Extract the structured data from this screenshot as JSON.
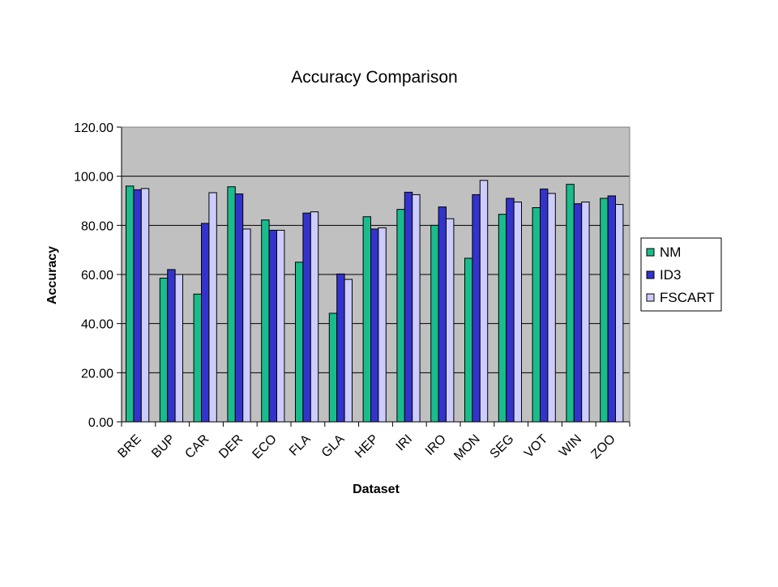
{
  "chart_data": {
    "type": "bar",
    "title": "Accuracy Comparison",
    "xlabel": "Dataset",
    "ylabel": "Accuracy",
    "ylim": [
      0,
      120
    ],
    "yticks": [
      "0.00",
      "20.00",
      "40.00",
      "60.00",
      "80.00",
      "100.00",
      "120.00"
    ],
    "ytick_values": [
      0,
      20,
      40,
      60,
      80,
      100,
      120
    ],
    "grid": true,
    "legend_position": "right",
    "categories": [
      "BRE",
      "BUP",
      "CAR",
      "DER",
      "ECO",
      "FLA",
      "GLA",
      "HEP",
      "IRI",
      "IRO",
      "MON",
      "SEG",
      "VOT",
      "WIN",
      "ZOO"
    ],
    "series": [
      {
        "name": "NM",
        "color": "#1ABC8C",
        "values": [
          96.0,
          58.5,
          52.0,
          95.7,
          82.2,
          65.0,
          44.2,
          83.5,
          86.5,
          80.0,
          66.6,
          84.5,
          87.2,
          96.7,
          91.0
        ]
      },
      {
        "name": "ID3",
        "color": "#3333CC",
        "values": [
          94.5,
          62.0,
          80.8,
          92.8,
          78.0,
          85.0,
          60.2,
          78.5,
          93.5,
          87.5,
          92.5,
          91.0,
          94.8,
          88.8,
          92.0
        ]
      },
      {
        "name": "FSCART",
        "color": "#CCCCFF",
        "values": [
          95.0,
          60.0,
          93.3,
          78.5,
          78.0,
          85.5,
          58.0,
          79.0,
          92.5,
          82.7,
          98.3,
          89.5,
          93.0,
          89.5,
          88.5
        ]
      }
    ],
    "colors": {
      "plot_background": "#C0C0C0",
      "grid": "#000000",
      "bar_outline": "#000000"
    }
  }
}
